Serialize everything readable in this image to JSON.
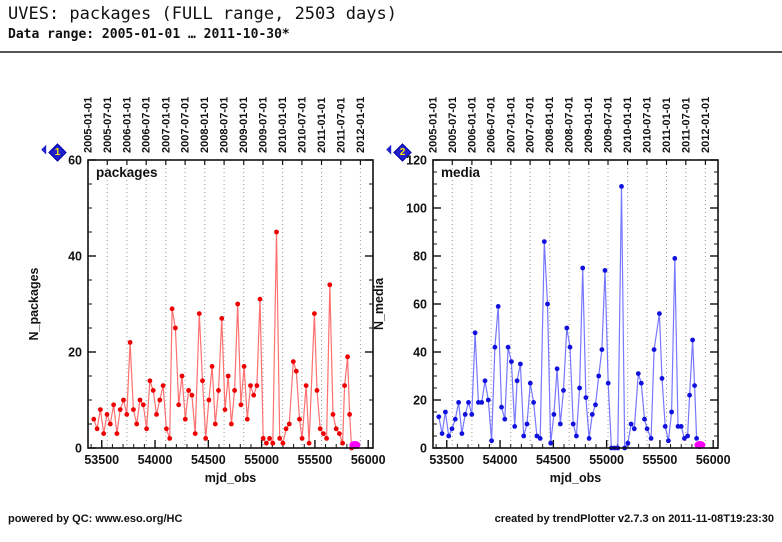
{
  "header": {
    "title": "UVES: packages (FULL range, 2503 days)",
    "subtitle": "Data range: 2005-01-01 … 2011-10-30*"
  },
  "footer": {
    "left": "powered by QC: www.eso.org/HC",
    "right": "created by trendPlotter v2.7.3 on 2011-11-08T19:23:30"
  },
  "markers": [
    {
      "label": "1"
    },
    {
      "label": "2"
    }
  ],
  "colors": {
    "grid": "#999999",
    "frame": "#111111",
    "marker_pin": "#2020cc",
    "marker_number": "#ffe400",
    "today": "#ff00ff"
  },
  "date_ticks": [
    {
      "label": "2005-01-01",
      "mjd": 53371
    },
    {
      "label": "2005-07-01",
      "mjd": 53552
    },
    {
      "label": "2006-01-01",
      "mjd": 53736
    },
    {
      "label": "2006-07-01",
      "mjd": 53917
    },
    {
      "label": "2007-01-01",
      "mjd": 54101
    },
    {
      "label": "2007-07-01",
      "mjd": 54282
    },
    {
      "label": "2008-01-01",
      "mjd": 54466
    },
    {
      "label": "2008-07-01",
      "mjd": 54648
    },
    {
      "label": "2009-01-01",
      "mjd": 54832
    },
    {
      "label": "2009-07-01",
      "mjd": 55013
    },
    {
      "label": "2010-01-01",
      "mjd": 55197
    },
    {
      "label": "2010-07-01",
      "mjd": 55378
    },
    {
      "label": "2011-01-01",
      "mjd": 55562
    },
    {
      "label": "2011-07-01",
      "mjd": 55743
    },
    {
      "label": "2012-01-01",
      "mjd": 55927
    }
  ],
  "chart_data": [
    {
      "type": "line",
      "title": "packages",
      "xlabel": "mjd_obs",
      "ylabel": "N_packages",
      "xlim": [
        53371,
        56045
      ],
      "ylim": [
        0,
        60
      ],
      "xticks": [
        53500,
        54000,
        54500,
        55000,
        55500,
        56000
      ],
      "xminor_step": 100,
      "ytick_step": 20,
      "yminor_step": 5,
      "grid": "vertical-dotted-at-date-ticks",
      "legend_position": "none",
      "point_color": "#ee0000",
      "line_color": "#ff7070",
      "today_marker": {
        "mjd": 55875,
        "value": 0
      },
      "points": [
        [
          53425,
          6
        ],
        [
          53456,
          4
        ],
        [
          53487,
          8
        ],
        [
          53518,
          3
        ],
        [
          53549,
          7
        ],
        [
          53580,
          5
        ],
        [
          53611,
          9
        ],
        [
          53642,
          3
        ],
        [
          53673,
          8
        ],
        [
          53704,
          10
        ],
        [
          53735,
          7
        ],
        [
          53766,
          22
        ],
        [
          53797,
          8
        ],
        [
          53828,
          5
        ],
        [
          53859,
          10
        ],
        [
          53890,
          9
        ],
        [
          53921,
          4
        ],
        [
          53952,
          14
        ],
        [
          53983,
          12
        ],
        [
          54014,
          7
        ],
        [
          54045,
          10
        ],
        [
          54076,
          13
        ],
        [
          54107,
          4
        ],
        [
          54138,
          2
        ],
        [
          54160,
          29
        ],
        [
          54191,
          25
        ],
        [
          54222,
          9
        ],
        [
          54253,
          15
        ],
        [
          54284,
          6
        ],
        [
          54315,
          12
        ],
        [
          54346,
          11
        ],
        [
          54377,
          3
        ],
        [
          54415,
          28
        ],
        [
          54445,
          14
        ],
        [
          54475,
          2
        ],
        [
          54505,
          10
        ],
        [
          54535,
          17
        ],
        [
          54565,
          5
        ],
        [
          54595,
          12
        ],
        [
          54626,
          27
        ],
        [
          54656,
          8
        ],
        [
          54686,
          15
        ],
        [
          54716,
          5
        ],
        [
          54746,
          12
        ],
        [
          54776,
          30
        ],
        [
          54806,
          9
        ],
        [
          54836,
          17
        ],
        [
          54866,
          6
        ],
        [
          54896,
          13
        ],
        [
          54926,
          11
        ],
        [
          54956,
          13
        ],
        [
          54985,
          31
        ],
        [
          55015,
          2
        ],
        [
          55045,
          1
        ],
        [
          55075,
          2
        ],
        [
          55105,
          1
        ],
        [
          55140,
          45
        ],
        [
          55170,
          2
        ],
        [
          55200,
          1
        ],
        [
          55230,
          4
        ],
        [
          55260,
          5
        ],
        [
          55297,
          18
        ],
        [
          55325,
          16
        ],
        [
          55355,
          6
        ],
        [
          55380,
          2
        ],
        [
          55417,
          13
        ],
        [
          55445,
          1
        ],
        [
          55495,
          28
        ],
        [
          55520,
          12
        ],
        [
          55550,
          4
        ],
        [
          55580,
          3
        ],
        [
          55610,
          2
        ],
        [
          55640,
          34
        ],
        [
          55670,
          7
        ],
        [
          55700,
          4
        ],
        [
          55730,
          3
        ],
        [
          55760,
          1
        ],
        [
          55779,
          13
        ],
        [
          55807,
          19
        ],
        [
          55825,
          7
        ],
        [
          55844,
          0
        ]
      ]
    },
    {
      "type": "line",
      "title": "media",
      "xlabel": "mjd_obs",
      "ylabel": "N_media",
      "xlim": [
        53371,
        56045
      ],
      "ylim": [
        0,
        120
      ],
      "xticks": [
        53500,
        54000,
        54500,
        55000,
        55500,
        56000
      ],
      "xminor_step": 100,
      "ytick_step": 20,
      "yminor_step": 5,
      "grid": "vertical-dotted-at-date-ticks",
      "legend_position": "none",
      "point_color": "#1111dd",
      "line_color": "#7777ff",
      "today_marker": {
        "mjd": 55875,
        "value": 0
      },
      "points": [
        [
          53425,
          13
        ],
        [
          53456,
          6
        ],
        [
          53487,
          15
        ],
        [
          53518,
          5
        ],
        [
          53549,
          8
        ],
        [
          53580,
          12
        ],
        [
          53611,
          19
        ],
        [
          53642,
          6
        ],
        [
          53673,
          14
        ],
        [
          53704,
          19
        ],
        [
          53735,
          14
        ],
        [
          53766,
          48
        ],
        [
          53797,
          19
        ],
        [
          53828,
          19
        ],
        [
          53859,
          28
        ],
        [
          53890,
          20
        ],
        [
          53921,
          3
        ],
        [
          53952,
          42
        ],
        [
          53983,
          59
        ],
        [
          54014,
          17
        ],
        [
          54045,
          12
        ],
        [
          54076,
          42
        ],
        [
          54107,
          36
        ],
        [
          54138,
          9
        ],
        [
          54160,
          28
        ],
        [
          54191,
          35
        ],
        [
          54222,
          5
        ],
        [
          54253,
          10
        ],
        [
          54284,
          27
        ],
        [
          54315,
          19
        ],
        [
          54346,
          5
        ],
        [
          54377,
          4
        ],
        [
          54415,
          86
        ],
        [
          54445,
          60
        ],
        [
          54475,
          2
        ],
        [
          54505,
          14
        ],
        [
          54535,
          33
        ],
        [
          54565,
          10
        ],
        [
          54595,
          24
        ],
        [
          54626,
          50
        ],
        [
          54656,
          42
        ],
        [
          54686,
          10
        ],
        [
          54716,
          5
        ],
        [
          54746,
          25
        ],
        [
          54776,
          75
        ],
        [
          54806,
          21
        ],
        [
          54836,
          4
        ],
        [
          54866,
          14
        ],
        [
          54896,
          18
        ],
        [
          54926,
          30
        ],
        [
          54956,
          41
        ],
        [
          54985,
          74
        ],
        [
          55015,
          27
        ],
        [
          55045,
          0
        ],
        [
          55075,
          0
        ],
        [
          55105,
          0
        ],
        [
          55140,
          109
        ],
        [
          55170,
          0
        ],
        [
          55200,
          2
        ],
        [
          55230,
          10
        ],
        [
          55260,
          8
        ],
        [
          55297,
          31
        ],
        [
          55325,
          27
        ],
        [
          55355,
          12
        ],
        [
          55380,
          8
        ],
        [
          55417,
          4
        ],
        [
          55445,
          41
        ],
        [
          55495,
          56
        ],
        [
          55520,
          29
        ],
        [
          55550,
          9
        ],
        [
          55580,
          3
        ],
        [
          55610,
          15
        ],
        [
          55640,
          79
        ],
        [
          55670,
          9
        ],
        [
          55700,
          9
        ],
        [
          55730,
          4
        ],
        [
          55760,
          5
        ],
        [
          55779,
          22
        ],
        [
          55807,
          45
        ],
        [
          55825,
          26
        ],
        [
          55844,
          4
        ]
      ]
    }
  ]
}
